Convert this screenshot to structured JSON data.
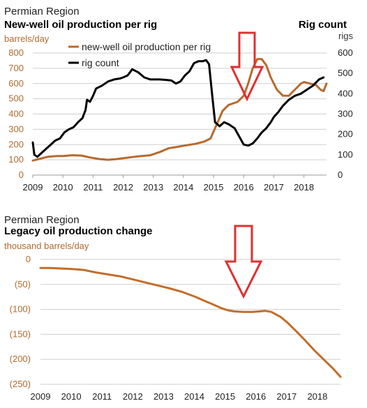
{
  "colors": {
    "production": "#b8692c",
    "rigs": "#000000",
    "legacy": "#c26d2a",
    "arrow": "#e03030",
    "axis_label_brown": "#b06a2e",
    "grid": "#cfcfcf"
  },
  "chart_data": [
    {
      "type": "line",
      "region_label": "Permian Region",
      "title": "New-well oil production per rig",
      "right_title": "Rig count",
      "ylabel": "barrels/day",
      "y2label": "rigs",
      "x_tick_labels": [
        "2009",
        "2010",
        "2011",
        "2012",
        "2013",
        "2014",
        "2015",
        "2016",
        "2017",
        "2018"
      ],
      "xlim": [
        2009,
        2018.75
      ],
      "ylim": [
        0,
        800
      ],
      "y_ticks": [
        0,
        100,
        200,
        300,
        400,
        500,
        600,
        700,
        800
      ],
      "y2lim": [
        0,
        600
      ],
      "y2_ticks": [
        0,
        100,
        200,
        300,
        400,
        500,
        600
      ],
      "grid": "horizontal",
      "legend": "top-center",
      "annotation": "red down arrow near 2016",
      "series": [
        {
          "name": "new-well oil production per rig",
          "axis": "left",
          "x": [
            2009.0,
            2009.2,
            2009.5,
            2009.8,
            2010.0,
            2010.3,
            2010.6,
            2010.9,
            2011.2,
            2011.5,
            2011.8,
            2012.0,
            2012.3,
            2012.6,
            2012.9,
            2013.2,
            2013.5,
            2013.8,
            2014.1,
            2014.4,
            2014.7,
            2014.9,
            2015.1,
            2015.3,
            2015.5,
            2015.8,
            2016.0,
            2016.15,
            2016.3,
            2016.45,
            2016.6,
            2016.75,
            2016.9,
            2017.1,
            2017.3,
            2017.5,
            2017.7,
            2017.9,
            2018.0,
            2018.2,
            2018.4,
            2018.55,
            2018.65,
            2018.75
          ],
          "values": [
            95,
            105,
            120,
            125,
            125,
            130,
            128,
            115,
            105,
            100,
            105,
            110,
            118,
            125,
            130,
            150,
            175,
            185,
            195,
            205,
            220,
            240,
            330,
            420,
            460,
            480,
            520,
            600,
            700,
            760,
            760,
            720,
            640,
            560,
            520,
            520,
            560,
            600,
            610,
            600,
            590,
            560,
            550,
            600
          ]
        },
        {
          "name": "rig count",
          "axis": "right",
          "x": [
            2009.0,
            2009.05,
            2009.15,
            2009.3,
            2009.45,
            2009.6,
            2009.75,
            2009.9,
            2010.05,
            2010.2,
            2010.35,
            2010.5,
            2010.65,
            2010.75,
            2010.8,
            2010.9,
            2011.0,
            2011.1,
            2011.3,
            2011.5,
            2011.7,
            2011.9,
            2012.0,
            2012.15,
            2012.3,
            2012.5,
            2012.7,
            2012.9,
            2013.0,
            2013.2,
            2013.4,
            2013.6,
            2013.75,
            2013.9,
            2014.05,
            2014.2,
            2014.35,
            2014.5,
            2014.65,
            2014.75,
            2014.85,
            2014.95,
            2015.05,
            2015.2,
            2015.35,
            2015.5,
            2015.7,
            2015.85,
            2016.0,
            2016.15,
            2016.3,
            2016.45,
            2016.6,
            2016.75,
            2016.9,
            2017.0,
            2017.15,
            2017.3,
            2017.5,
            2017.7,
            2017.9,
            2018.1,
            2018.3,
            2018.5,
            2018.65
          ],
          "values": [
            160,
            100,
            90,
            110,
            130,
            150,
            170,
            180,
            210,
            225,
            235,
            260,
            280,
            320,
            370,
            360,
            390,
            425,
            440,
            460,
            470,
            475,
            480,
            490,
            520,
            505,
            480,
            470,
            470,
            470,
            468,
            465,
            450,
            460,
            490,
            510,
            550,
            560,
            560,
            565,
            545,
            400,
            260,
            240,
            260,
            250,
            230,
            190,
            150,
            145,
            155,
            180,
            210,
            230,
            260,
            285,
            310,
            340,
            370,
            390,
            400,
            420,
            440,
            470,
            480
          ]
        }
      ]
    },
    {
      "type": "line",
      "region_label": "Permian Region",
      "title": "Legacy oil production change",
      "ylabel": "thousand barrels/day",
      "x_tick_labels": [
        "2009",
        "2010",
        "2011",
        "2012",
        "2013",
        "2014",
        "2015",
        "2016",
        "2017",
        "2018"
      ],
      "xlim": [
        2009,
        2018.75
      ],
      "ylim": [
        -250,
        0
      ],
      "y_ticks": [
        0,
        -50,
        -100,
        -150,
        -200,
        -250
      ],
      "y_tick_labels": [
        "0",
        "(50)",
        "(100)",
        "(150)",
        "(200)",
        "(250)"
      ],
      "grid": "horizontal",
      "annotation": "red down arrow near 2015.8",
      "series": [
        {
          "x": [
            2009.0,
            2009.3,
            2009.6,
            2010.0,
            2010.4,
            2010.8,
            2011.2,
            2011.6,
            2012.0,
            2012.4,
            2012.8,
            2013.2,
            2013.6,
            2014.0,
            2014.3,
            2014.6,
            2014.9,
            2015.1,
            2015.3,
            2015.6,
            2015.9,
            2016.1,
            2016.3,
            2016.5,
            2016.8,
            2017.0,
            2017.3,
            2017.6,
            2017.9,
            2018.2,
            2018.5,
            2018.75
          ],
          "values": [
            -17,
            -17,
            -18,
            -19,
            -21,
            -26,
            -30,
            -34,
            -40,
            -46,
            -52,
            -58,
            -65,
            -74,
            -82,
            -90,
            -98,
            -102,
            -104,
            -105,
            -105,
            -104,
            -103,
            -105,
            -115,
            -125,
            -143,
            -162,
            -182,
            -200,
            -218,
            -235
          ]
        }
      ]
    }
  ]
}
